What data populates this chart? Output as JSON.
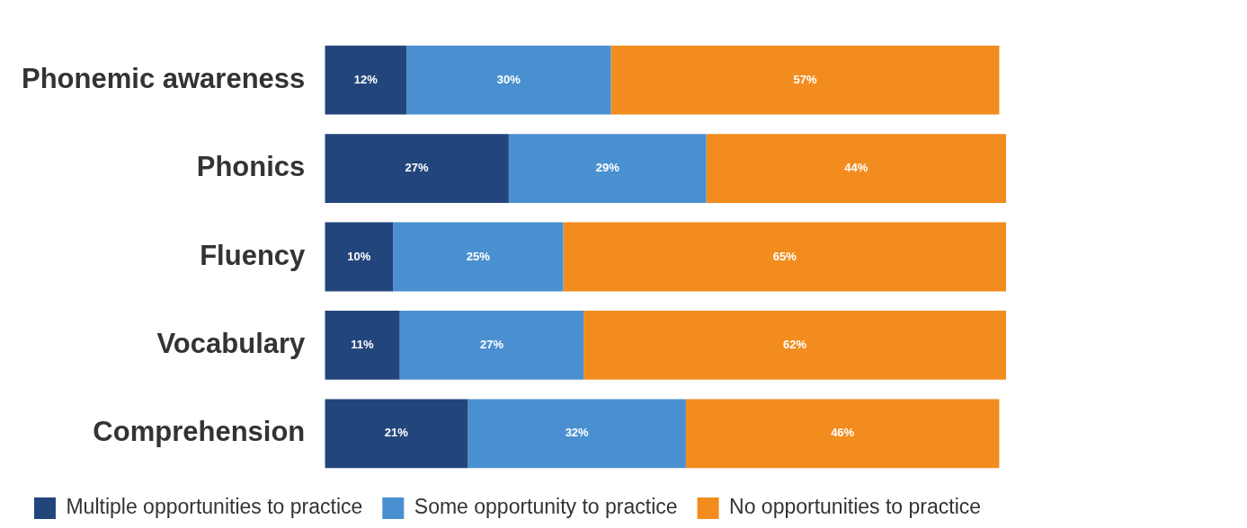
{
  "chart_data": {
    "type": "bar",
    "orientation": "horizontal",
    "stacked": true,
    "categories": [
      "Phonemic awareness",
      "Phonics",
      "Fluency",
      "Vocabulary",
      "Comprehension"
    ],
    "series": [
      {
        "name": "Multiple opportunities to practice",
        "color": "#22467c",
        "values": [
          12,
          27,
          10,
          11,
          21
        ],
        "value_labels": [
          "12%",
          "27%",
          "10%",
          "11%",
          "21%"
        ]
      },
      {
        "name": "Some opportunity to practice",
        "color": "#4a90d0",
        "values": [
          30,
          29,
          25,
          27,
          32
        ],
        "value_labels": [
          "30%",
          "29%",
          "25%",
          "27%",
          "32%"
        ]
      },
      {
        "name": "No opportunities to practice",
        "color": "#f28c1e",
        "values": [
          57,
          44,
          65,
          62,
          46
        ],
        "value_labels": [
          "57%",
          "44%",
          "65%",
          "62%",
          "46%"
        ]
      }
    ],
    "tick_labels": "y",
    "legend": "bottom"
  }
}
